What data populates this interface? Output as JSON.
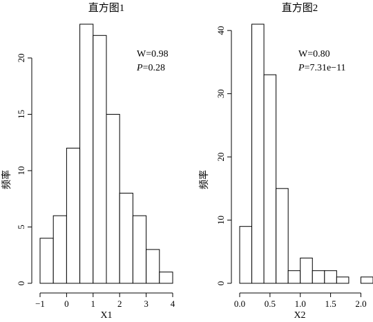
{
  "chart_data": [
    {
      "type": "bar",
      "title": "直方图1",
      "xlabel": "X1",
      "ylabel": "频率",
      "bin_edges": [
        -1,
        -0.5,
        0,
        0.5,
        1,
        1.5,
        2,
        2.5,
        3,
        3.5,
        4
      ],
      "values": [
        4,
        6,
        12,
        23,
        22,
        15,
        8,
        6,
        3,
        1
      ],
      "xlim": [
        -1,
        4
      ],
      "ylim": [
        0,
        23
      ],
      "xticks": [
        -1,
        0,
        1,
        2,
        3,
        4
      ],
      "xtick_labels": [
        "−1",
        "0",
        "1",
        "2",
        "3",
        "4"
      ],
      "yticks": [
        0,
        5,
        10,
        15,
        20
      ],
      "ytick_labels": [
        "0",
        "5",
        "10",
        "15",
        "20"
      ],
      "annotation": {
        "w_text": "W=0.98",
        "p_symbol": "P",
        "p_rest": "=0.28"
      },
      "grid": false
    },
    {
      "type": "bar",
      "title": "直方图2",
      "xlabel": "X2",
      "ylabel": "频率",
      "bin_edges": [
        0,
        0.2,
        0.4,
        0.6,
        0.8,
        1.0,
        1.2,
        1.4,
        1.6,
        1.8,
        2.0,
        2.2
      ],
      "values": [
        9,
        41,
        33,
        15,
        2,
        4,
        2,
        2,
        1,
        0,
        1
      ],
      "xlim": [
        0,
        2.2
      ],
      "ylim": [
        0,
        41
      ],
      "xticks": [
        0,
        0.5,
        1.0,
        1.5,
        2.0
      ],
      "xtick_labels": [
        "0.0",
        "0.5",
        "1.0",
        "1.5",
        "2.0"
      ],
      "yticks": [
        0,
        10,
        20,
        30,
        40
      ],
      "ytick_labels": [
        "0",
        "10",
        "20",
        "30",
        "40"
      ],
      "annotation": {
        "w_text": "W=0.80",
        "p_symbol": "P",
        "p_rest": "=7.31e−11"
      },
      "grid": false
    }
  ]
}
